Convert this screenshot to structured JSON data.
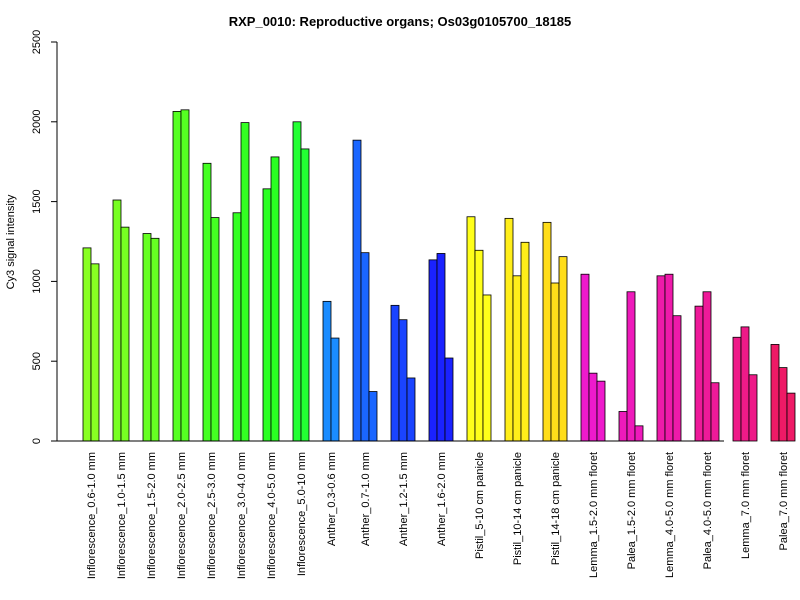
{
  "chart_data": {
    "type": "bar",
    "title": "RXP_0010: Reproductive organs; Os03g0105700_18185",
    "xlabel": "",
    "ylabel": "Cy3 signal intensity",
    "ylim": [
      0,
      2500
    ],
    "yticks": [
      0,
      500,
      1000,
      1500,
      2000,
      2500
    ],
    "grid": false,
    "legend": "none",
    "groups": [
      {
        "label": "Inflorescence_0.6-1.0 mm",
        "color": "#88ff22",
        "values": [
          1210,
          1110
        ]
      },
      {
        "label": "Inflorescence_1.0-1.5 mm",
        "color": "#77ff22",
        "values": [
          1510,
          1340
        ]
      },
      {
        "label": "Inflorescence_1.5-2.0 mm",
        "color": "#66ff22",
        "values": [
          1300,
          1270
        ]
      },
      {
        "label": "Inflorescence_2.0-2.5 mm",
        "color": "#55ff22",
        "values": [
          2065,
          2075
        ]
      },
      {
        "label": "Inflorescence_2.5-3.0 mm",
        "color": "#44ff22",
        "values": [
          1740,
          1400
        ]
      },
      {
        "label": "Inflorescence_3.0-4.0 mm",
        "color": "#33ff22",
        "values": [
          1430,
          1995
        ]
      },
      {
        "label": "Inflorescence_4.0-5.0 mm",
        "color": "#2aff22",
        "values": [
          1580,
          1780
        ]
      },
      {
        "label": "Inflorescence_5.0-10 mm",
        "color": "#22ff33",
        "values": [
          2000,
          1830
        ]
      },
      {
        "label": "Anther_0.3-0.6 mm",
        "color": "#1a8cff",
        "values": [
          875,
          645
        ]
      },
      {
        "label": "Anther_0.7-1.0 mm",
        "color": "#1a66ff",
        "values": [
          1885,
          1180,
          310
        ]
      },
      {
        "label": "Anther_1.2-1.5 mm",
        "color": "#1a44ff",
        "values": [
          850,
          760,
          395
        ]
      },
      {
        "label": "Anther_1.6-2.0 mm",
        "color": "#1a22ff",
        "values": [
          1135,
          1175,
          520
        ]
      },
      {
        "label": "Pistil_5-10 cm panicle",
        "color": "#ffff1a",
        "values": [
          1405,
          1195,
          915
        ]
      },
      {
        "label": "Pistil_10-14 cm panicle",
        "color": "#ffee1a",
        "values": [
          1395,
          1035,
          1245
        ]
      },
      {
        "label": "Pistil_14-18 cm panicle",
        "color": "#ffdd1a",
        "values": [
          1370,
          990,
          1155
        ]
      },
      {
        "label": "Lemma_1.5-2.0 mm floret",
        "color": "#ee1acc",
        "values": [
          1045,
          425,
          375
        ]
      },
      {
        "label": "Palea_1.5-2.0 mm floret",
        "color": "#ee1abb",
        "values": [
          185,
          935,
          95
        ]
      },
      {
        "label": "Lemma_4.0-5.0 mm floret",
        "color": "#ee1aaa",
        "values": [
          1035,
          1045,
          785
        ]
      },
      {
        "label": "Palea_4.0-5.0 mm floret",
        "color": "#ee1a99",
        "values": [
          845,
          935,
          365
        ]
      },
      {
        "label": "Lemma_7.0 mm floret",
        "color": "#ee1a88",
        "values": [
          650,
          715,
          415
        ]
      },
      {
        "label": "Palea_7.0 mm floret",
        "color": "#ee1a66",
        "values": [
          605,
          460,
          300
        ]
      }
    ]
  }
}
